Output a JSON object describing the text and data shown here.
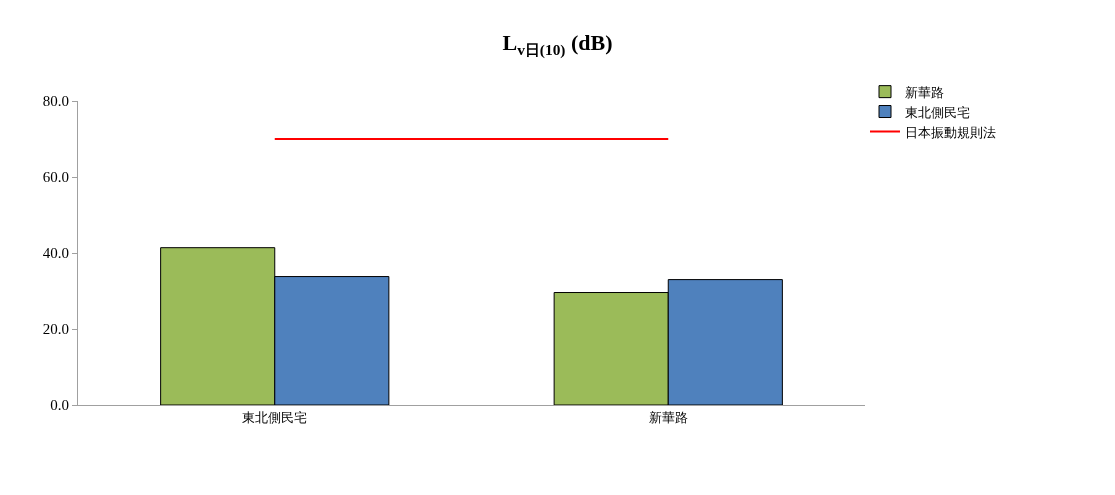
{
  "chart_data": {
    "type": "bar",
    "title": "L$_{v日(10)}$ (dB)",
    "categories": [
      "東北側民宅",
      "新華路"
    ],
    "series": [
      {
        "name": "新華路",
        "color": "#9bbb59",
        "values": [
          41.4,
          29.6
        ]
      },
      {
        "name": "東北側民宅",
        "color": "#4f81bd",
        "values": [
          33.8,
          33.0
        ]
      },
      {
        "name": "日本振動規則法",
        "type": "line",
        "color": "#ff0000",
        "values": [
          70.0,
          70.0
        ],
        "line_style": "solid"
      }
    ],
    "ylim": [
      0,
      80
    ],
    "yticks": [
      {
        "value": 0,
        "label": "0.0"
      },
      {
        "value": 20,
        "label": "20.0"
      },
      {
        "value": 40,
        "label": "40.0"
      },
      {
        "value": 60,
        "label": "60.0"
      },
      {
        "value": 80,
        "label": "80.0"
      }
    ],
    "grid": false,
    "legend": "top right",
    "marker": "none"
  }
}
